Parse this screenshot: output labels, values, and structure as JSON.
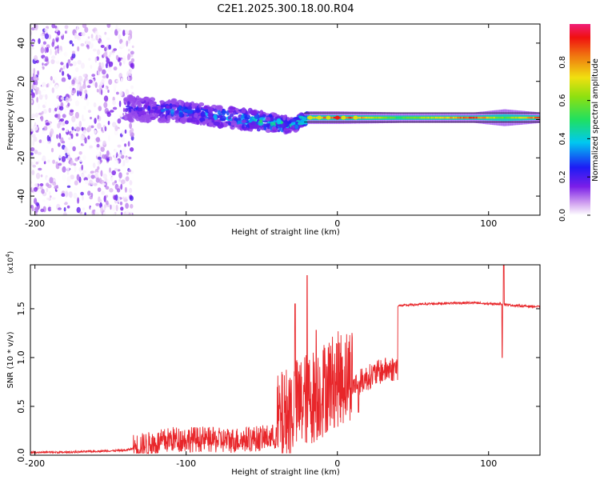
{
  "title": "C2E1.2025.300.18.00.R04",
  "chart_data": [
    {
      "type": "heatmap",
      "name": "spectrogram",
      "xlabel": "Height of straight line (km)",
      "ylabel": "Frequency (Hz)",
      "xlim": [
        -203,
        134
      ],
      "ylim": [
        -50,
        50
      ],
      "xticks": [
        -200,
        -100,
        0,
        100
      ],
      "xtick_labels": [
        "-200",
        "-100",
        "0",
        "100"
      ],
      "yticks": [
        -40,
        -20,
        0,
        20,
        40
      ],
      "ytick_labels": [
        "-40",
        "-20",
        "0",
        "20",
        "40"
      ],
      "colorbar": {
        "label": "Normalized spectral amplitude",
        "range": [
          0,
          1
        ],
        "ticks": [
          0.0,
          0.2,
          0.4,
          0.6,
          0.8
        ],
        "tick_labels": [
          "0.0",
          "0.2",
          "0.4",
          "0.6",
          "0.8"
        ]
      },
      "series": [
        {
          "name": "scattered-noise",
          "x_range": [
            -203,
            -135
          ],
          "frequency_range": [
            -50,
            50
          ],
          "amplitude_range": [
            0.0,
            0.15
          ]
        },
        {
          "name": "dispersed-band",
          "x": [
            -140,
            -100,
            -60,
            -30,
            -20
          ],
          "center_hz": [
            6,
            4,
            0,
            -3,
            1
          ],
          "width_hz": [
            10,
            8,
            8,
            6,
            4
          ],
          "amplitude": [
            0.2,
            0.3,
            0.4,
            0.45,
            0.6
          ]
        },
        {
          "name": "carrier-line",
          "x": [
            -20,
            0,
            40,
            90,
            110,
            134
          ],
          "center_hz": [
            1,
            1,
            1,
            1,
            1,
            1
          ],
          "width_hz": [
            3,
            3,
            2.5,
            2.5,
            4,
            2.5
          ],
          "amplitude": [
            0.7,
            1.0,
            0.55,
            0.95,
            0.6,
            0.95
          ]
        }
      ]
    },
    {
      "type": "line",
      "name": "snr",
      "xlabel": "Height of straight line (km)",
      "ylabel": "SNR (10 * v/v)",
      "y_multiplier": "(x10^4)",
      "y_multiplier_base": "(x10",
      "y_multiplier_exp": "4",
      "y_multiplier_tail": ")",
      "xlim": [
        -203,
        134
      ],
      "ylim": [
        0,
        1.95
      ],
      "xticks": [
        -200,
        -100,
        0,
        100
      ],
      "xtick_labels": [
        "-200",
        "-100",
        "0",
        "100"
      ],
      "yticks": [
        0.0,
        0.5,
        1.0,
        1.5
      ],
      "ytick_labels": [
        "0.0",
        "0.5",
        "1.0",
        "1.5"
      ],
      "series": [
        {
          "name": "SNR",
          "color": "#e8262a",
          "x": [
            -203,
            -180,
            -160,
            -140,
            -130,
            -120,
            -110,
            -100,
            -90,
            -80,
            -70,
            -60,
            -50,
            -40,
            -35,
            -30,
            -25,
            -20,
            -15,
            -10,
            -5,
            0,
            5,
            10,
            20,
            30,
            40,
            60,
            80,
            90,
            100,
            108,
            110,
            112,
            120,
            134
          ],
          "y": [
            0.02,
            0.02,
            0.03,
            0.04,
            0.08,
            0.12,
            0.2,
            0.2,
            0.2,
            0.18,
            0.18,
            0.2,
            0.22,
            0.25,
            0.35,
            0.5,
            0.6,
            0.7,
            0.75,
            0.85,
            1.0,
            1.05,
            1.1,
            1.2,
            1.35,
            1.48,
            1.53,
            1.55,
            1.56,
            1.56,
            1.55,
            1.55,
            1.55,
            1.54,
            1.53,
            1.52
          ],
          "peaks": [
            {
              "x": -28,
              "y": 1.55
            },
            {
              "x": -20,
              "y": 1.84
            },
            {
              "x": -14,
              "y": 1.28
            },
            {
              "x": 14,
              "y": 0.44
            },
            {
              "x": 110,
              "y": 1.95
            },
            {
              "x": 109,
              "y": 1.0
            }
          ]
        }
      ]
    }
  ]
}
